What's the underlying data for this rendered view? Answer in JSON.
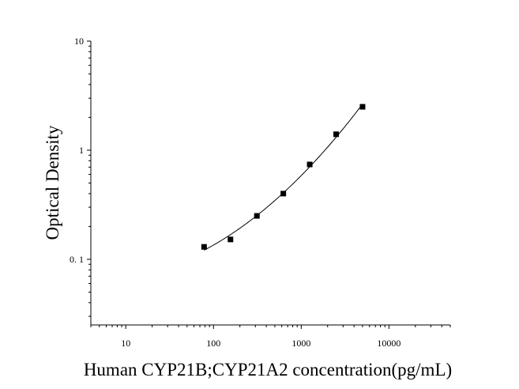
{
  "chart_data": {
    "type": "scatter",
    "title": "",
    "xlabel": "Human CYP21B;CYP21A2 concentration(pg/mL)",
    "ylabel": "Optical Density",
    "x_scale": "log",
    "y_scale": "log",
    "xlim": [
      4,
      50000
    ],
    "ylim": [
      0.025,
      10
    ],
    "x_ticks": [
      {
        "value": 10,
        "label": "10"
      },
      {
        "value": 100,
        "label": "100"
      },
      {
        "value": 1000,
        "label": "1000"
      },
      {
        "value": 10000,
        "label": "10000"
      }
    ],
    "y_ticks": [
      {
        "value": 0.1,
        "label": "0. 1"
      },
      {
        "value": 1,
        "label": "1"
      },
      {
        "value": 10,
        "label": "10"
      }
    ],
    "grid": false,
    "legend": "none",
    "series": [
      {
        "marker": "square",
        "color": "#000000",
        "points": [
          {
            "x": 78.125,
            "y": 0.13
          },
          {
            "x": 156.25,
            "y": 0.152
          },
          {
            "x": 312.5,
            "y": 0.25
          },
          {
            "x": 625,
            "y": 0.4
          },
          {
            "x": 1250,
            "y": 0.74
          },
          {
            "x": 2500,
            "y": 1.4
          },
          {
            "x": 5000,
            "y": 2.5
          }
        ]
      }
    ],
    "fit_curve": {
      "color": "#000000",
      "x_range": [
        78.125,
        5000
      ]
    }
  }
}
